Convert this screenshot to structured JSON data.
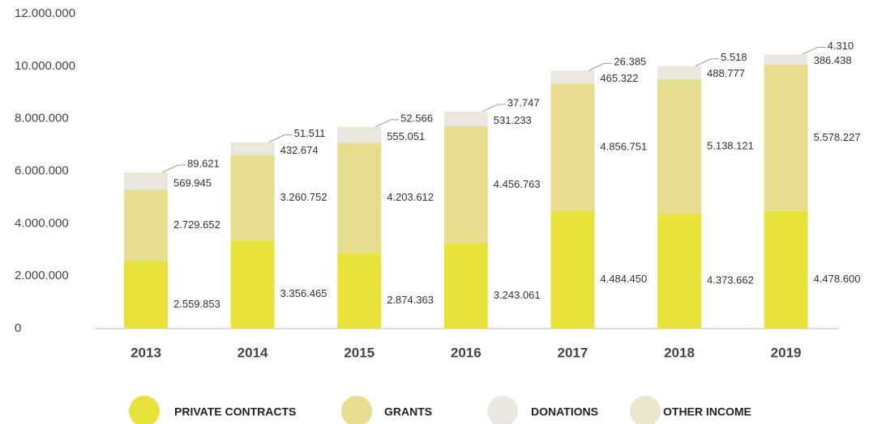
{
  "chart_data": {
    "type": "stacked_bar",
    "categories": [
      "2013",
      "2014",
      "2015",
      "2016",
      "2017",
      "2018",
      "2019"
    ],
    "series": [
      {
        "name": "PRIVATE CONTRACTS",
        "color": "#e8e33b",
        "values": [
          2559853,
          3356465,
          2874363,
          3243061,
          4484450,
          4373662,
          4478600
        ],
        "value_labels": [
          "2.559.853",
          "3.356.465",
          "2.874.363",
          "3.243.061",
          "4.484.450",
          "4.373.662",
          "4.478.600"
        ]
      },
      {
        "name": "GRANTS",
        "color": "#e6dd8f",
        "values": [
          2729652,
          3260752,
          4203612,
          4456763,
          4856751,
          5138121,
          5578227
        ],
        "value_labels": [
          "2.729.652",
          "3.260.752",
          "4.203.612",
          "4.456.763",
          "4.856.751",
          "5.138.121",
          "5.578.227"
        ]
      },
      {
        "name": "DONATIONS",
        "color": "#e9e7e0",
        "values": [
          569945,
          432674,
          555051,
          531233,
          465322,
          488777,
          386438
        ],
        "value_labels": [
          "569.945",
          "432.674",
          "555.051",
          "531.233",
          "465.322",
          "488.777",
          "386.438"
        ]
      },
      {
        "name": "OTHER INCOME",
        "color": "#ece6cd",
        "values": [
          89621,
          51511,
          52566,
          37747,
          26385,
          5518,
          4310
        ],
        "value_labels": [
          "89.621",
          "51.511",
          "52.566",
          "37.747",
          "26.385",
          "5.518",
          "4.310"
        ]
      }
    ],
    "ylim": [
      0,
      12000000
    ],
    "yticks": [
      0,
      {
        "value": 2000000,
        "label": "2.000.000"
      },
      {
        "value": 4000000,
        "label": "4.000.000"
      },
      {
        "value": 6000000,
        "label": "6.000.000"
      },
      {
        "value": 8000000,
        "label": "8.000.000"
      },
      {
        "value": 10000000,
        "label": "10.000.000"
      },
      {
        "value": 12000000,
        "label": "12.000.000"
      }
    ],
    "legend": "bottom"
  }
}
